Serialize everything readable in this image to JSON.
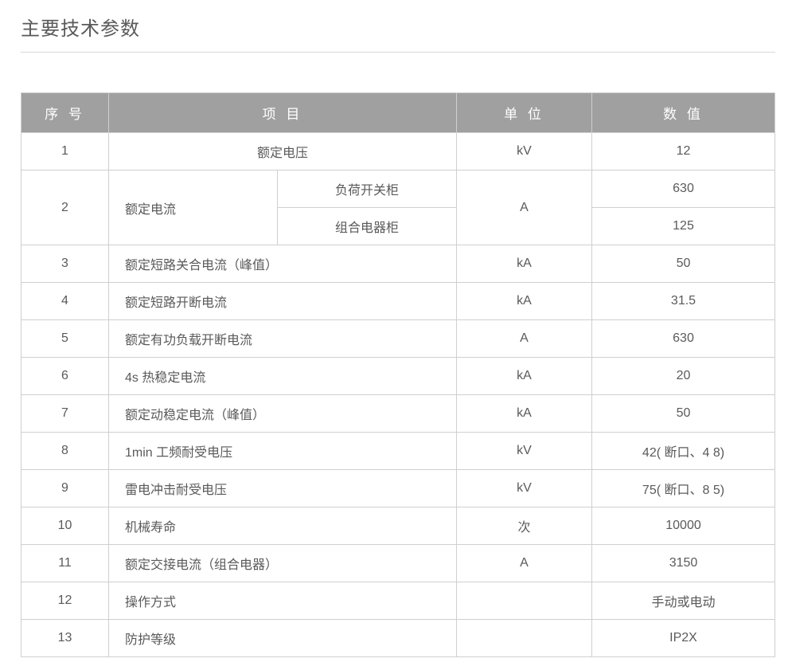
{
  "title": "主要技术参数",
  "headers": {
    "seq": "序 号",
    "item": "项 目",
    "unit": "单 位",
    "value": "数 值"
  },
  "rows": {
    "r1": {
      "seq": "1",
      "item": "额定电压",
      "unit": "kV",
      "value": "12"
    },
    "r2": {
      "seq": "2",
      "item": "额定电流",
      "sub1": "负荷开关柜",
      "sub2": "组合电器柜",
      "unit": "A",
      "value1": "630",
      "value2": "125"
    },
    "r3": {
      "seq": "3",
      "item": "额定短路关合电流（峰值）",
      "unit": "kA",
      "value": "50"
    },
    "r4": {
      "seq": "4",
      "item": "额定短路开断电流",
      "unit": "kA",
      "value": "31.5"
    },
    "r5": {
      "seq": "5",
      "item": "额定有功负载开断电流",
      "unit": "A",
      "value": "630"
    },
    "r6": {
      "seq": "6",
      "item": "4s 热稳定电流",
      "unit": "kA",
      "value": "20"
    },
    "r7": {
      "seq": "7",
      "item": "额定动稳定电流（峰值）",
      "unit": "kA",
      "value": "50"
    },
    "r8": {
      "seq": "8",
      "item": "1min 工频耐受电压",
      "unit": "kV",
      "value": "42( 断口、4 8)"
    },
    "r9": {
      "seq": "9",
      "item": "雷电冲击耐受电压",
      "unit": "kV",
      "value": "75( 断口、8 5)"
    },
    "r10": {
      "seq": "10",
      "item": "机械寿命",
      "unit": "次",
      "value": "10000"
    },
    "r11": {
      "seq": "11",
      "item": "额定交接电流（组合电器）",
      "unit": "A",
      "value": "3150"
    },
    "r12": {
      "seq": "12",
      "item": "操作方式",
      "unit": "",
      "value": "手动或电动"
    },
    "r13": {
      "seq": "13",
      "item": "防护等级",
      "unit": "",
      "value": "IP2X"
    }
  },
  "styling": {
    "header_bg": "#a0a0a0",
    "header_text": "#ffffff",
    "border_color": "#cfcfcf",
    "cell_text": "#5a5a5a",
    "title_color": "#5a5a5a",
    "title_underline": "#d8d8d8",
    "font_family": "Microsoft YaHei",
    "header_fontsize": 17,
    "cell_fontsize": 16,
    "title_fontsize": 24,
    "col_widths": {
      "seq": 110,
      "item": 430,
      "unit": 170,
      "value": 230
    }
  }
}
